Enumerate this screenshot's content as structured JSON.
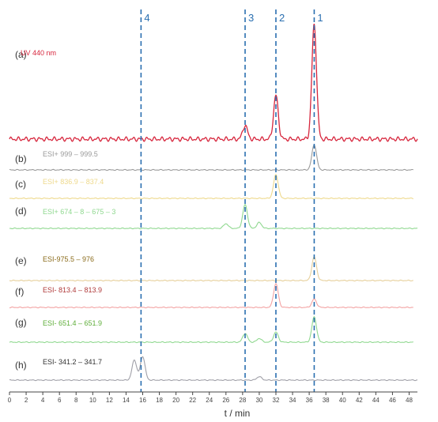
{
  "chart_data": {
    "type": "line",
    "xlabel": "t / min",
    "xlim": [
      0,
      49
    ],
    "xticks": [
      0,
      2,
      4,
      6,
      8,
      10,
      12,
      14,
      16,
      18,
      20,
      22,
      24,
      26,
      28,
      30,
      32,
      34,
      36,
      38,
      40,
      42,
      44,
      46,
      48
    ],
    "grid": false,
    "markers": [
      {
        "label": "4",
        "x": 15.8
      },
      {
        "label": "3",
        "x": 28.3
      },
      {
        "label": "2",
        "x": 32.0
      },
      {
        "label": "1",
        "x": 36.6
      }
    ],
    "series": [
      {
        "panel": "(a)",
        "name": "UV 440 nm",
        "color": "#d7263d",
        "x_end": 49,
        "peaks": [
          {
            "x": 28.3,
            "rel_height": 0.12
          },
          {
            "x": 32.0,
            "rel_height": 0.38
          },
          {
            "x": 36.6,
            "rel_height": 1.0
          }
        ]
      },
      {
        "panel": "(b)",
        "name": "ESI+ 999 – 999.5",
        "color": "#9a9a9a",
        "x_end": 48.5,
        "peaks": [
          {
            "x": 36.6,
            "rel_height": 1.0
          }
        ]
      },
      {
        "panel": "(c)",
        "name": "ESI+ 836.9 – 837.4",
        "color": "#eed98c",
        "x_end": 48.5,
        "peaks": [
          {
            "x": 32.0,
            "rel_height": 1.0
          }
        ]
      },
      {
        "panel": "(d)",
        "name": "ESI+ 674 – 8 – 675 – 3",
        "color": "#8fd88f",
        "x_end": 49,
        "peaks": [
          {
            "x": 26.0,
            "rel_height": 0.2
          },
          {
            "x": 28.3,
            "rel_height": 1.0
          },
          {
            "x": 30.0,
            "rel_height": 0.25
          }
        ]
      },
      {
        "panel": "(e)",
        "name": "ESI-975.5 – 976",
        "color": "#e6cf9a",
        "label_color": "#8a6b1a",
        "x_end": 48.5,
        "peaks": [
          {
            "x": 36.6,
            "rel_height": 1.0
          }
        ]
      },
      {
        "panel": "(f)",
        "name": "ESI- 813.4 – 813.9",
        "color": "#f3a3a3",
        "label_color": "#b03a3a",
        "x_end": 48.5,
        "peaks": [
          {
            "x": 32.0,
            "rel_height": 1.0
          },
          {
            "x": 36.6,
            "rel_height": 0.35
          }
        ]
      },
      {
        "panel": "(g)",
        "name": "ESI- 651.4 – 651.9",
        "color": "#8fd88f",
        "label_color": "#5fae3a",
        "x_end": 48.5,
        "peaks": [
          {
            "x": 28.3,
            "rel_height": 0.35
          },
          {
            "x": 30.0,
            "rel_height": 0.15
          },
          {
            "x": 32.0,
            "rel_height": 0.4
          },
          {
            "x": 36.6,
            "rel_height": 1.0
          }
        ]
      },
      {
        "panel": "(h)",
        "name": "ESI- 341.2 – 341.7",
        "color": "#a0a0a8",
        "label_color": "#333333",
        "x_end": 49,
        "peaks": [
          {
            "x": 15.0,
            "rel_height": 0.85
          },
          {
            "x": 16.0,
            "rel_height": 1.0
          },
          {
            "x": 30.0,
            "rel_height": 0.15
          }
        ]
      }
    ]
  }
}
